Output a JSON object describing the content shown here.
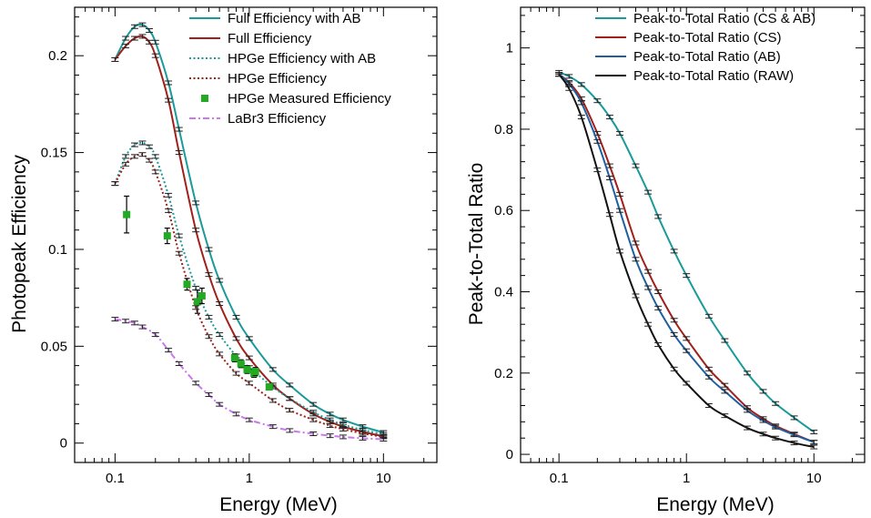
{
  "chart_data": [
    {
      "type": "line",
      "xlabel": "Energy (MeV)",
      "ylabel": "Photopeak Efficiency",
      "xscale": "log",
      "xlim": [
        0.05,
        25
      ],
      "ylim": [
        -0.01,
        0.225
      ],
      "xticks": [
        {
          "v": 0.1,
          "label": "0.1"
        },
        {
          "v": 1,
          "label": "1"
        },
        {
          "v": 10,
          "label": "10"
        }
      ],
      "yticks": [
        {
          "v": 0,
          "label": "0"
        },
        {
          "v": 0.05,
          "label": "0.05"
        },
        {
          "v": 0.1,
          "label": "0.1"
        },
        {
          "v": 0.15,
          "label": "0.15"
        },
        {
          "v": 0.2,
          "label": "0.2"
        }
      ],
      "legend_position": "top-right",
      "series": [
        {
          "name": "Full Efficiency with AB",
          "color": "#1a9a9a",
          "style": "solid",
          "x": [
            0.1,
            0.12,
            0.14,
            0.16,
            0.18,
            0.2,
            0.25,
            0.3,
            0.4,
            0.5,
            0.6,
            0.8,
            1,
            1.5,
            2,
            3,
            4,
            5,
            7,
            10
          ],
          "y": [
            0.198,
            0.209,
            0.215,
            0.216,
            0.213,
            0.207,
            0.186,
            0.162,
            0.124,
            0.1,
            0.084,
            0.065,
            0.054,
            0.038,
            0.03,
            0.02,
            0.015,
            0.012,
            0.0085,
            0.0055
          ]
        },
        {
          "name": "Full Efficiency",
          "color": "#a0201a",
          "style": "solid",
          "x": [
            0.1,
            0.12,
            0.14,
            0.16,
            0.18,
            0.2,
            0.25,
            0.3,
            0.4,
            0.5,
            0.6,
            0.8,
            1,
            1.5,
            2,
            3,
            4,
            5,
            7,
            10
          ],
          "y": [
            0.198,
            0.205,
            0.209,
            0.21,
            0.207,
            0.2,
            0.177,
            0.15,
            0.11,
            0.087,
            0.072,
            0.054,
            0.044,
            0.03,
            0.023,
            0.015,
            0.011,
            0.0085,
            0.0058,
            0.0035
          ]
        },
        {
          "name": "HPGe Efficiency with AB",
          "color": "#1a9a9a",
          "style": "dotted",
          "x": [
            0.1,
            0.12,
            0.14,
            0.16,
            0.18,
            0.2,
            0.25,
            0.3,
            0.4,
            0.5,
            0.6,
            0.8,
            1,
            1.5,
            2,
            3,
            4,
            5,
            7,
            10
          ],
          "y": [
            0.134,
            0.148,
            0.154,
            0.155,
            0.153,
            0.148,
            0.128,
            0.107,
            0.08,
            0.065,
            0.056,
            0.045,
            0.039,
            0.029,
            0.023,
            0.016,
            0.012,
            0.0095,
            0.0068,
            0.0045
          ]
        },
        {
          "name": "HPGe Efficiency",
          "color": "#a0201a",
          "style": "dotted",
          "x": [
            0.1,
            0.12,
            0.14,
            0.16,
            0.18,
            0.2,
            0.25,
            0.3,
            0.4,
            0.5,
            0.6,
            0.8,
            1,
            1.5,
            2,
            3,
            4,
            5,
            7,
            10
          ],
          "y": [
            0.134,
            0.144,
            0.148,
            0.149,
            0.146,
            0.14,
            0.12,
            0.098,
            0.07,
            0.055,
            0.046,
            0.036,
            0.031,
            0.022,
            0.017,
            0.012,
            0.009,
            0.0072,
            0.005,
            0.0032
          ]
        },
        {
          "name": "HPGe Measured Efficiency",
          "color": "#22aa22",
          "style": "markers",
          "x": [
            0.122,
            0.245,
            0.344,
            0.411,
            0.444,
            0.779,
            0.867,
            0.964,
            1.086,
            1.112,
            1.408
          ],
          "y": [
            0.118,
            0.107,
            0.082,
            0.073,
            0.076,
            0.044,
            0.041,
            0.038,
            0.036,
            0.037,
            0.029
          ],
          "yerr": [
            0.0095,
            0.004,
            0.003,
            0.006,
            0.004,
            0.002,
            0.002,
            0.002,
            0.002,
            0.002,
            0.0015
          ]
        },
        {
          "name": "LaBr3 Efficiency",
          "color": "#cc77ee",
          "style": "dashdot",
          "x": [
            0.1,
            0.12,
            0.14,
            0.16,
            0.2,
            0.25,
            0.3,
            0.4,
            0.5,
            0.6,
            0.8,
            1,
            1.5,
            2,
            3,
            4,
            5,
            7,
            10
          ],
          "y": [
            0.064,
            0.063,
            0.062,
            0.06,
            0.056,
            0.048,
            0.041,
            0.031,
            0.025,
            0.02,
            0.015,
            0.012,
            0.0085,
            0.0065,
            0.0048,
            0.0038,
            0.0032,
            0.0025,
            0.002
          ]
        }
      ]
    },
    {
      "type": "line",
      "xlabel": "Energy (MeV)",
      "ylabel": "Peak-to-Total Ratio",
      "xscale": "log",
      "xlim": [
        0.05,
        25
      ],
      "ylim": [
        -0.02,
        1.1
      ],
      "xticks": [
        {
          "v": 0.1,
          "label": "0.1"
        },
        {
          "v": 1,
          "label": "1"
        },
        {
          "v": 10,
          "label": "10"
        }
      ],
      "yticks": [
        {
          "v": 0,
          "label": "0"
        },
        {
          "v": 0.2,
          "label": "0.2"
        },
        {
          "v": 0.4,
          "label": "0.4"
        },
        {
          "v": 0.6,
          "label": "0.6"
        },
        {
          "v": 0.8,
          "label": "0.8"
        },
        {
          "v": 1,
          "label": "1"
        }
      ],
      "legend_position": "top-right",
      "series": [
        {
          "name": "Peak-to-Total Ratio (CS & AB)",
          "color": "#1a9a9a",
          "style": "solid",
          "x": [
            0.1,
            0.12,
            0.15,
            0.2,
            0.25,
            0.3,
            0.4,
            0.5,
            0.6,
            0.8,
            1,
            1.5,
            2,
            3,
            4,
            5,
            7,
            10
          ],
          "y": [
            0.94,
            0.93,
            0.91,
            0.87,
            0.83,
            0.79,
            0.71,
            0.645,
            0.585,
            0.5,
            0.44,
            0.34,
            0.28,
            0.2,
            0.155,
            0.125,
            0.09,
            0.055
          ]
        },
        {
          "name": "Peak-to-Total Ratio (CS)",
          "color": "#a0201a",
          "style": "solid",
          "x": [
            0.1,
            0.12,
            0.15,
            0.2,
            0.25,
            0.3,
            0.4,
            0.5,
            0.6,
            0.8,
            1,
            1.5,
            2,
            3,
            4,
            5,
            7,
            10
          ],
          "y": [
            0.935,
            0.915,
            0.875,
            0.79,
            0.71,
            0.64,
            0.52,
            0.45,
            0.4,
            0.33,
            0.285,
            0.21,
            0.17,
            0.115,
            0.088,
            0.07,
            0.05,
            0.03
          ]
        },
        {
          "name": "Peak-to-Total Ratio (AB)",
          "color": "#1f5f9f",
          "style": "solid",
          "x": [
            0.1,
            0.12,
            0.15,
            0.2,
            0.25,
            0.3,
            0.4,
            0.5,
            0.6,
            0.8,
            1,
            1.5,
            2,
            3,
            4,
            5,
            7,
            10
          ],
          "y": [
            0.935,
            0.912,
            0.865,
            0.77,
            0.68,
            0.6,
            0.48,
            0.41,
            0.36,
            0.295,
            0.255,
            0.19,
            0.155,
            0.108,
            0.083,
            0.067,
            0.048,
            0.03
          ]
        },
        {
          "name": "Peak-to-Total Ratio (RAW)",
          "color": "#111111",
          "style": "solid",
          "x": [
            0.1,
            0.12,
            0.15,
            0.2,
            0.25,
            0.3,
            0.4,
            0.5,
            0.6,
            0.8,
            1,
            1.5,
            2,
            3,
            4,
            5,
            7,
            10
          ],
          "y": [
            0.935,
            0.9,
            0.83,
            0.7,
            0.59,
            0.5,
            0.39,
            0.32,
            0.27,
            0.21,
            0.175,
            0.12,
            0.095,
            0.065,
            0.05,
            0.04,
            0.028,
            0.018
          ]
        }
      ]
    }
  ]
}
